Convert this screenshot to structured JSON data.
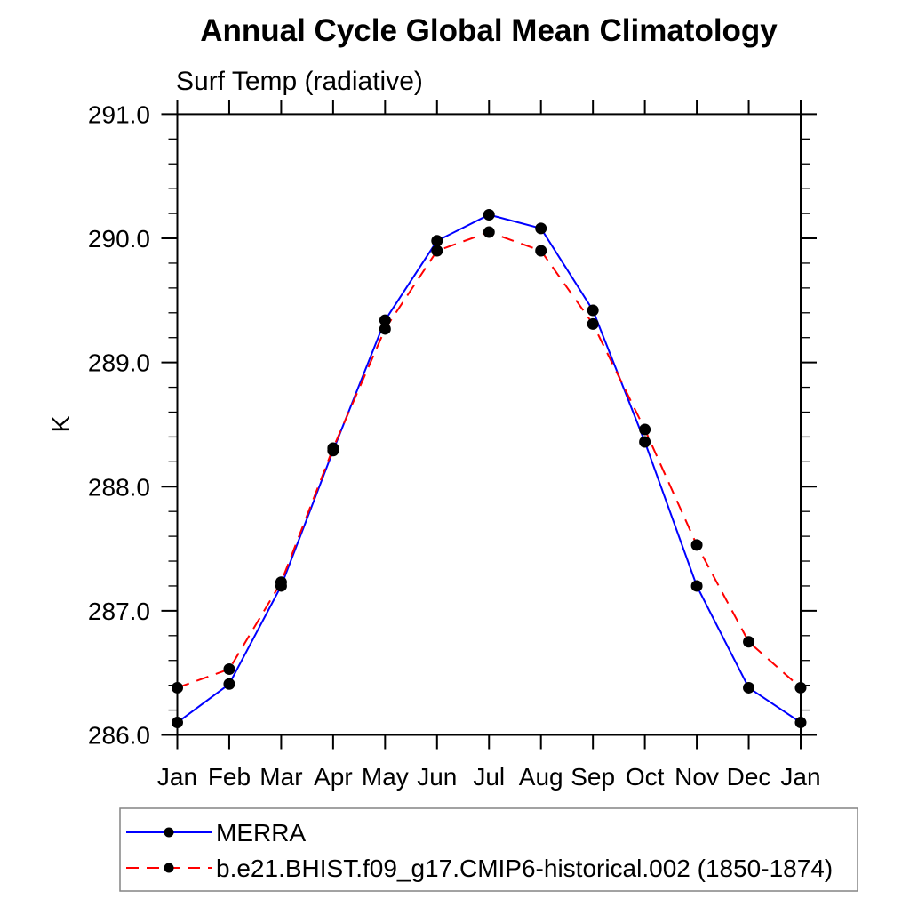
{
  "chart_data": {
    "type": "line",
    "title": "Annual Cycle Global Mean Climatology",
    "subtitle": "Surf Temp (radiative)",
    "xlabel": "",
    "ylabel": "K",
    "categories": [
      "Jan",
      "Feb",
      "Mar",
      "Apr",
      "May",
      "Jun",
      "Jul",
      "Aug",
      "Sep",
      "Oct",
      "Nov",
      "Dec",
      "Jan"
    ],
    "ylim": [
      286.0,
      291.0
    ],
    "ytick_major": 1.0,
    "ytick_minor": 0.2,
    "ytick_decimals": 1,
    "grid": false,
    "legend_position": "bottom-left",
    "axis_color": "#000000",
    "legend_border_color": "#848484",
    "series": [
      {
        "name": "MERRA",
        "color": "#0000ff",
        "line_style": "solid",
        "marker": "circle",
        "marker_color": "#000000",
        "values": [
          286.1,
          286.41,
          287.2,
          288.29,
          289.34,
          289.98,
          290.19,
          290.08,
          289.42,
          288.36,
          287.2,
          286.38,
          286.1
        ]
      },
      {
        "name": "b.e21.BHIST.f09_g17.CMIP6-historical.002 (1850-1874)",
        "color": "#ff0000",
        "line_style": "dashed",
        "marker": "circle",
        "marker_color": "#000000",
        "values": [
          286.38,
          286.53,
          287.23,
          288.31,
          289.27,
          289.9,
          290.05,
          289.9,
          289.31,
          288.46,
          287.53,
          286.75,
          286.38
        ]
      }
    ]
  }
}
